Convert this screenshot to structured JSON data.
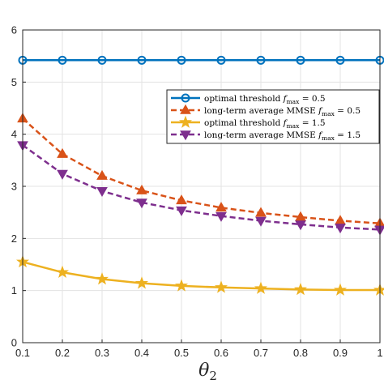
{
  "chart_data": {
    "type": "line",
    "title": "",
    "xlabel": "θ",
    "xlabel_sub": "2",
    "ylabel": "",
    "xlim": [
      0.1,
      1.0
    ],
    "ylim": [
      0,
      6
    ],
    "xticks": [
      "0.1",
      "0.2",
      "0.3",
      "0.4",
      "0.5",
      "0.6",
      "0.7",
      "0.8",
      "0.9",
      "1"
    ],
    "yticks": [
      "0",
      "1",
      "2",
      "3",
      "4",
      "5",
      "6"
    ],
    "grid": true,
    "legend_position": "right-middle",
    "x": [
      0.1,
      0.2,
      0.3,
      0.4,
      0.5,
      0.6,
      0.7,
      0.8,
      0.9,
      1.0
    ],
    "series": [
      {
        "legend_main": "optimal threshold ",
        "legend_var": "f",
        "legend_sub": "max",
        "legend_tail": " = 0.5",
        "color": "#0072BD",
        "dash": "solid",
        "marker": "circle",
        "values": [
          5.42,
          5.42,
          5.42,
          5.42,
          5.42,
          5.42,
          5.42,
          5.42,
          5.42,
          5.42
        ]
      },
      {
        "legend_main": "long-term average MMSE ",
        "legend_var": "f",
        "legend_sub": "max",
        "legend_tail": " = 0.5",
        "color": "#D95319",
        "dash": "dashed",
        "marker": "triangle-up",
        "values": [
          4.3,
          3.62,
          3.2,
          2.92,
          2.73,
          2.59,
          2.49,
          2.41,
          2.34,
          2.29
        ]
      },
      {
        "legend_main": "optimal threshold ",
        "legend_var": "f",
        "legend_sub": "max",
        "legend_tail": " = 1.5",
        "color": "#EDB120",
        "dash": "solid",
        "marker": "star",
        "values": [
          1.55,
          1.35,
          1.22,
          1.14,
          1.09,
          1.06,
          1.04,
          1.02,
          1.01,
          1.01
        ]
      },
      {
        "legend_main": "long-term average MMSE ",
        "legend_var": "f",
        "legend_sub": "max",
        "legend_tail": " = 1.5",
        "color": "#7E2F8E",
        "dash": "dashed",
        "marker": "triangle-down",
        "values": [
          3.79,
          3.24,
          2.91,
          2.69,
          2.54,
          2.43,
          2.34,
          2.27,
          2.21,
          2.17
        ]
      }
    ]
  }
}
